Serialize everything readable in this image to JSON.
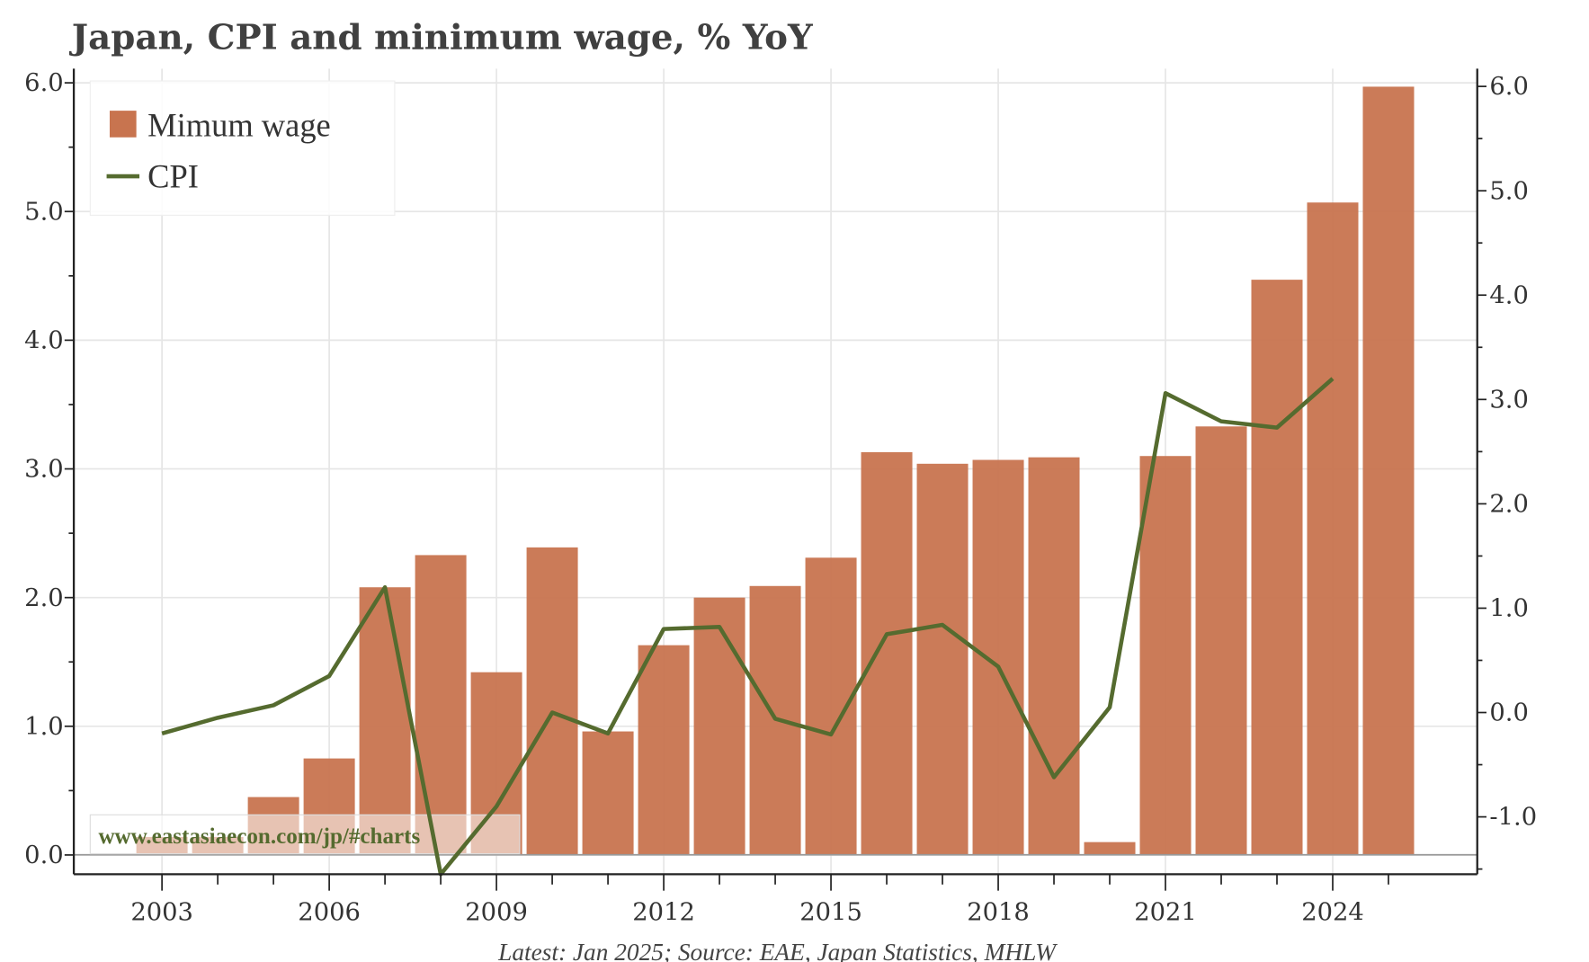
{
  "chart_data": {
    "type": "bar+line",
    "title": "Japan, CPI and minimum wage, % YoY",
    "source": "Latest: Jan 2025; Source: EAE, Japan Statistics, MHLW",
    "watermark": "www.eastasiaecon.com/jp/#charts",
    "legend_placement": "top-left",
    "grid": true,
    "x": [
      2003,
      2004,
      2005,
      2006,
      2007,
      2008,
      2009,
      2010,
      2011,
      2012,
      2013,
      2014,
      2015,
      2016,
      2017,
      2018,
      2019,
      2020,
      2021,
      2022,
      2023,
      2024,
      2025
    ],
    "x_tick_labels": [
      "2003",
      "2006",
      "2009",
      "2012",
      "2015",
      "2018",
      "2021",
      "2024"
    ],
    "left_axis": {
      "range": [
        -0.15,
        6.11
      ],
      "tick_labels": [
        "0.0",
        "1.0",
        "2.0",
        "3.0",
        "4.0",
        "5.0",
        "6.0"
      ]
    },
    "right_axis": {
      "range": [
        -1.55,
        6.17
      ],
      "tick_labels": [
        "-1.0",
        "0.0",
        "1.0",
        "2.0",
        "3.0",
        "4.0",
        "5.0",
        "6.0"
      ]
    },
    "series": [
      {
        "name": "Mimum wage",
        "type": "bar",
        "axis": "left",
        "color": "#c8744f",
        "values": [
          0.14,
          0.14,
          0.45,
          0.75,
          2.08,
          2.33,
          1.42,
          2.39,
          0.96,
          1.63,
          2.0,
          2.09,
          2.31,
          3.13,
          3.04,
          3.07,
          3.09,
          0.1,
          3.1,
          3.33,
          4.47,
          5.07,
          5.97
        ]
      },
      {
        "name": "CPI",
        "type": "line",
        "axis": "right",
        "color": "#556b2f",
        "values": [
          -0.2,
          -0.05,
          0.07,
          0.35,
          1.2,
          -1.55,
          -0.9,
          0.0,
          -0.2,
          0.8,
          0.82,
          -0.06,
          -0.21,
          0.75,
          0.84,
          0.44,
          -0.62,
          0.05,
          3.06,
          2.79,
          2.73,
          3.2,
          null
        ]
      }
    ]
  }
}
